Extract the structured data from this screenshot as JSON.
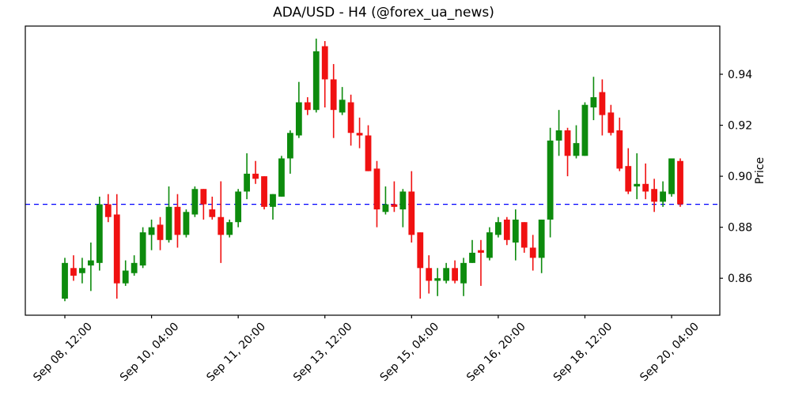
{
  "figure": {
    "title": "ADA/USD - H4 (@forex_ua_news)",
    "background": "#ffffff"
  },
  "chart_data": {
    "type": "candlestick",
    "symbol": "ADA/USD",
    "timeframe": "H4",
    "title": "ADA/USD - H4 (@forex_ua_news)",
    "ylabel": "Price",
    "ylim": [
      0.8455,
      0.9589
    ],
    "y_ticks": [
      "0.86",
      "0.88",
      "0.90",
      "0.92",
      "0.94"
    ],
    "y_tick_values": [
      0.86,
      0.88,
      0.9,
      0.92,
      0.94
    ],
    "x_tick_labels": [
      "Sep 08, 12:00",
      "Sep 10, 04:00",
      "Sep 11, 20:00",
      "Sep 13, 12:00",
      "Sep 15, 04:00",
      "Sep 16, 20:00",
      "Sep 18, 12:00",
      "Sep 20, 04:00"
    ],
    "x_tick_candle_indices": [
      0,
      10,
      20,
      30,
      40,
      50,
      60,
      70
    ],
    "hline": {
      "value": 0.889,
      "color": "#0000ff",
      "style": "dashed",
      "role": "support-resistance-level"
    },
    "up_color": "#0d8b0d",
    "down_color": "#f01111",
    "grid": false,
    "legend": null,
    "candle_format": [
      "time",
      "open",
      "high",
      "low",
      "close"
    ],
    "candles": [
      [
        "Sep 08 12:00",
        0.852,
        0.868,
        0.851,
        0.866
      ],
      [
        "Sep 08 16:00",
        0.864,
        0.869,
        0.859,
        0.861
      ],
      [
        "Sep 08 20:00",
        0.862,
        0.868,
        0.858,
        0.864
      ],
      [
        "Sep 09 00:00",
        0.865,
        0.874,
        0.855,
        0.867
      ],
      [
        "Sep 09 04:00",
        0.866,
        0.892,
        0.863,
        0.889
      ],
      [
        "Sep 09 08:00",
        0.889,
        0.893,
        0.882,
        0.884
      ],
      [
        "Sep 09 12:00",
        0.885,
        0.893,
        0.852,
        0.858
      ],
      [
        "Sep 09 16:00",
        0.858,
        0.867,
        0.857,
        0.863
      ],
      [
        "Sep 09 20:00",
        0.862,
        0.869,
        0.861,
        0.866
      ],
      [
        "Sep 10 00:00",
        0.865,
        0.88,
        0.864,
        0.878
      ],
      [
        "Sep 10 04:00",
        0.877,
        0.883,
        0.871,
        0.88
      ],
      [
        "Sep 10 08:00",
        0.881,
        0.884,
        0.871,
        0.875
      ],
      [
        "Sep 10 12:00",
        0.875,
        0.896,
        0.874,
        0.888
      ],
      [
        "Sep 10 16:00",
        0.888,
        0.893,
        0.872,
        0.877
      ],
      [
        "Sep 10 20:00",
        0.877,
        0.887,
        0.876,
        0.886
      ],
      [
        "Sep 11 00:00",
        0.885,
        0.896,
        0.884,
        0.895
      ],
      [
        "Sep 11 04:00",
        0.895,
        0.895,
        0.883,
        0.889
      ],
      [
        "Sep 11 08:00",
        0.887,
        0.892,
        0.883,
        0.884
      ],
      [
        "Sep 11 12:00",
        0.884,
        0.898,
        0.866,
        0.877
      ],
      [
        "Sep 11 16:00",
        0.877,
        0.883,
        0.876,
        0.882
      ],
      [
        "Sep 11 20:00",
        0.882,
        0.895,
        0.88,
        0.894
      ],
      [
        "Sep 12 00:00",
        0.894,
        0.909,
        0.891,
        0.901
      ],
      [
        "Sep 12 04:00",
        0.901,
        0.906,
        0.897,
        0.899
      ],
      [
        "Sep 12 08:00",
        0.9,
        0.9,
        0.887,
        0.888
      ],
      [
        "Sep 12 12:00",
        0.888,
        0.893,
        0.883,
        0.893
      ],
      [
        "Sep 12 16:00",
        0.892,
        0.908,
        0.892,
        0.907
      ],
      [
        "Sep 12 20:00",
        0.907,
        0.918,
        0.901,
        0.917
      ],
      [
        "Sep 13 00:00",
        0.916,
        0.937,
        0.915,
        0.929
      ],
      [
        "Sep 13 04:00",
        0.929,
        0.931,
        0.924,
        0.926
      ],
      [
        "Sep 13 08:00",
        0.926,
        0.954,
        0.925,
        0.949
      ],
      [
        "Sep 13 12:00",
        0.951,
        0.953,
        0.927,
        0.938
      ],
      [
        "Sep 13 16:00",
        0.938,
        0.944,
        0.915,
        0.926
      ],
      [
        "Sep 13 20:00",
        0.925,
        0.935,
        0.924,
        0.93
      ],
      [
        "Sep 14 00:00",
        0.929,
        0.932,
        0.912,
        0.917
      ],
      [
        "Sep 14 04:00",
        0.917,
        0.923,
        0.911,
        0.916
      ],
      [
        "Sep 14 08:00",
        0.916,
        0.92,
        0.902,
        0.902
      ],
      [
        "Sep 14 12:00",
        0.903,
        0.906,
        0.88,
        0.887
      ],
      [
        "Sep 14 16:00",
        0.886,
        0.896,
        0.885,
        0.889
      ],
      [
        "Sep 14 20:00",
        0.889,
        0.898,
        0.886,
        0.888
      ],
      [
        "Sep 15 00:00",
        0.887,
        0.895,
        0.88,
        0.894
      ],
      [
        "Sep 15 04:00",
        0.894,
        0.902,
        0.874,
        0.877
      ],
      [
        "Sep 15 08:00",
        0.878,
        0.878,
        0.852,
        0.864
      ],
      [
        "Sep 15 12:00",
        0.864,
        0.869,
        0.854,
        0.859
      ],
      [
        "Sep 15 16:00",
        0.859,
        0.864,
        0.853,
        0.86
      ],
      [
        "Sep 15 20:00",
        0.859,
        0.866,
        0.858,
        0.864
      ],
      [
        "Sep 16 00:00",
        0.864,
        0.867,
        0.858,
        0.859
      ],
      [
        "Sep 16 04:00",
        0.858,
        0.868,
        0.853,
        0.866
      ],
      [
        "Sep 16 08:00",
        0.866,
        0.875,
        0.866,
        0.87
      ],
      [
        "Sep 16 12:00",
        0.871,
        0.875,
        0.857,
        0.87
      ],
      [
        "Sep 16 16:00",
        0.868,
        0.88,
        0.867,
        0.878
      ],
      [
        "Sep 16 20:00",
        0.877,
        0.884,
        0.876,
        0.882
      ],
      [
        "Sep 17 00:00",
        0.883,
        0.884,
        0.873,
        0.875
      ],
      [
        "Sep 17 04:00",
        0.874,
        0.887,
        0.867,
        0.883
      ],
      [
        "Sep 17 08:00",
        0.882,
        0.882,
        0.87,
        0.872
      ],
      [
        "Sep 17 12:00",
        0.872,
        0.877,
        0.863,
        0.868
      ],
      [
        "Sep 17 16:00",
        0.868,
        0.883,
        0.862,
        0.883
      ],
      [
        "Sep 17 20:00",
        0.883,
        0.919,
        0.876,
        0.914
      ],
      [
        "Sep 18 00:00",
        0.914,
        0.926,
        0.908,
        0.918
      ],
      [
        "Sep 18 04:00",
        0.918,
        0.919,
        0.9,
        0.908
      ],
      [
        "Sep 18 08:00",
        0.908,
        0.92,
        0.907,
        0.913
      ],
      [
        "Sep 18 12:00",
        0.908,
        0.929,
        0.908,
        0.928
      ],
      [
        "Sep 18 16:00",
        0.927,
        0.939,
        0.922,
        0.931
      ],
      [
        "Sep 18 20:00",
        0.933,
        0.938,
        0.916,
        0.924
      ],
      [
        "Sep 19 00:00",
        0.925,
        0.928,
        0.916,
        0.917
      ],
      [
        "Sep 19 04:00",
        0.918,
        0.923,
        0.902,
        0.903
      ],
      [
        "Sep 19 08:00",
        0.904,
        0.911,
        0.893,
        0.894
      ],
      [
        "Sep 19 12:00",
        0.896,
        0.909,
        0.891,
        0.897
      ],
      [
        "Sep 19 16:00",
        0.897,
        0.905,
        0.891,
        0.894
      ],
      [
        "Sep 19 20:00",
        0.895,
        0.899,
        0.886,
        0.89
      ],
      [
        "Sep 20 00:00",
        0.89,
        0.898,
        0.888,
        0.894
      ],
      [
        "Sep 20 04:00",
        0.893,
        0.907,
        0.892,
        0.907
      ],
      [
        "Sep 20 08:00",
        0.906,
        0.907,
        0.888,
        0.889
      ]
    ]
  }
}
